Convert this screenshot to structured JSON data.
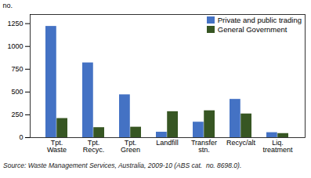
{
  "chart_data": {
    "type": "bar",
    "categories": [
      "Tpt.\nWaste",
      "Tpt.\nRecyc.",
      "Tpt.\nGreen",
      "Landfill",
      "Transfer\nstn.",
      "Recyc/alt",
      "Liq.\ntreatment"
    ],
    "series": [
      {
        "name": "Private and public trading",
        "color": "#4472c4",
        "values": [
          1220,
          820,
          470,
          60,
          170,
          420,
          55
        ]
      },
      {
        "name": "General Government",
        "color": "#375623",
        "values": [
          210,
          110,
          115,
          285,
          295,
          260,
          45
        ]
      }
    ],
    "ylabel": "no.",
    "ylim": [
      0,
      1350
    ],
    "yticks": [
      0,
      250,
      500,
      750,
      1000,
      1250
    ],
    "grid": false,
    "legend": "upper right",
    "source": "Source: Waste Management Services, Australia, 2009-10 (ABS cat.  no. 8698.0)."
  }
}
